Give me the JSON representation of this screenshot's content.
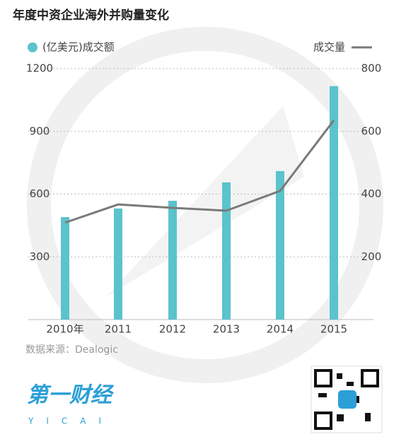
{
  "chart_data": {
    "type": "bar",
    "title": "年度中资企业海外并购量变化",
    "categories": [
      "2010年",
      "2011",
      "2012",
      "2013",
      "2014",
      "2015"
    ],
    "series": [
      {
        "name": "(亿美元)成交额",
        "type": "bar",
        "color": "#5bc3cc",
        "values": [
          490,
          531,
          568,
          656,
          710,
          1116
        ]
      },
      {
        "name": "成交量",
        "type": "line",
        "color": "#7a7a7a",
        "axis": "y2",
        "values": [
          309,
          367,
          356,
          347,
          410,
          635
        ]
      }
    ],
    "ylim": [
      0,
      1200
    ],
    "yticks": [
      300,
      600,
      900,
      1200
    ],
    "y2lim": [
      0,
      800
    ],
    "y2ticks": [
      200,
      400,
      600,
      800
    ],
    "grid": true,
    "source": "数据来源：Dealogic"
  },
  "brand": {
    "name": "第一财经",
    "latin": "YICAI"
  }
}
